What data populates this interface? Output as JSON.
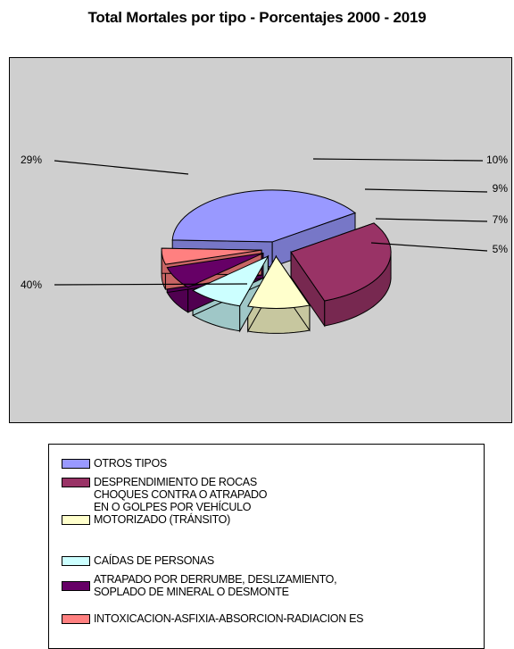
{
  "chart_data": {
    "type": "pie",
    "title": "Total Mortales por tipo - Porcentajes 2000 - 2019",
    "slices": [
      {
        "label": "OTROS TIPOS",
        "value": 40,
        "label_text": "40%",
        "color": "#9999ff"
      },
      {
        "label": "DESPRENDIMIENTO DE ROCAS",
        "value": 29,
        "label_text": "29%",
        "color": "#993366"
      },
      {
        "label": "CHOQUES CONTRA O ATRAPADO EN O GOLPES POR VEHÍCULO MOTORIZADO (TRÁNSITO)",
        "value": 10,
        "label_text": "10%",
        "color": "#ffffcc"
      },
      {
        "label": "CAÍDAS DE PERSONAS",
        "value": 9,
        "label_text": "9%",
        "color": "#ccffff"
      },
      {
        "label": "ATRAPADO POR DERRUMBE, DESLIZAMIENTO, SOPLADO DE MINERAL O DESMONTE",
        "value": 7,
        "label_text": "7%",
        "color": "#660066"
      },
      {
        "label": "INTOXICACION-ASFIXIA-ABSORCION-RADIACION ES",
        "value": 5,
        "label_text": "5%",
        "color": "#ff8080"
      }
    ]
  },
  "legend": {
    "entries": [
      {
        "text": "OTROS TIPOS",
        "color": "#9999ff"
      },
      {
        "text": "DESPRENDIMIENTO DE ROCAS",
        "color": "#993366"
      },
      {
        "text": "CHOQUES CONTRA O ATRAPADO\nEN O GOLPES POR VEHÍCULO\nMOTORIZADO (TRÁNSITO)",
        "color": "#ffffcc"
      },
      {
        "text": "CAÍDAS DE PERSONAS",
        "color": "#ccffff"
      },
      {
        "text": "ATRAPADO POR DERRUMBE, DESLIZAMIENTO,\nSOPLADO DE MINERAL O DESMONTE",
        "color": "#660066"
      },
      {
        "text": "INTOXICACION-ASFIXIA-ABSORCION-RADIACION ES",
        "color": "#ff8080"
      }
    ]
  }
}
